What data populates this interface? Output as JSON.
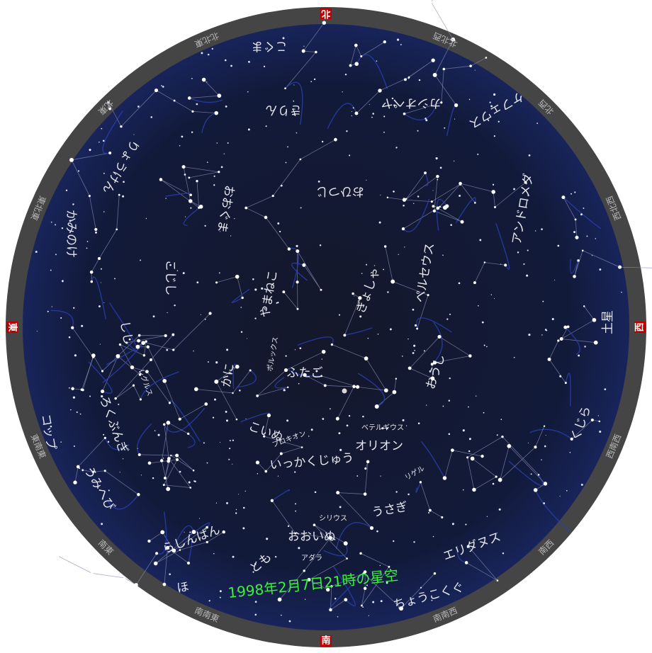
{
  "directions": {
    "north": "北",
    "east": "東",
    "south": "南",
    "west": "西"
  },
  "rim_labels": [
    "北北東",
    "北東",
    "東北東",
    "東南東",
    "南東",
    "南南東",
    "南南西",
    "南西",
    "西南西",
    "西北西",
    "北西",
    "北北西"
  ],
  "constellations": [
    "こぐま",
    "きりん",
    "ケフェウス",
    "カシオペヤ",
    "りょうけん",
    "かみのけ",
    "おおぐま",
    "こじし",
    "やまねこ",
    "ぎょしゃ",
    "ペルセウス",
    "アンドロメダ",
    "おひつじ",
    "おうし",
    "ふたご",
    "かに",
    "しし",
    "ろくぶんぎ",
    "うみへび",
    "コップ",
    "こいぬ",
    "いっかくじゅう",
    "オリオン",
    "うさぎ",
    "おおいぬ",
    "らしんばん",
    "とも",
    "ほ",
    "エリダヌス",
    "ちょうこくぐ",
    "くじら"
  ],
  "stars": [
    "ポルックス",
    "プロキオン",
    "ベテルギウス",
    "リゲル",
    "シリウス",
    "アダラ",
    "レグルス"
  ],
  "planet": "土星",
  "caption": "1998年2月7日21時の星空"
}
